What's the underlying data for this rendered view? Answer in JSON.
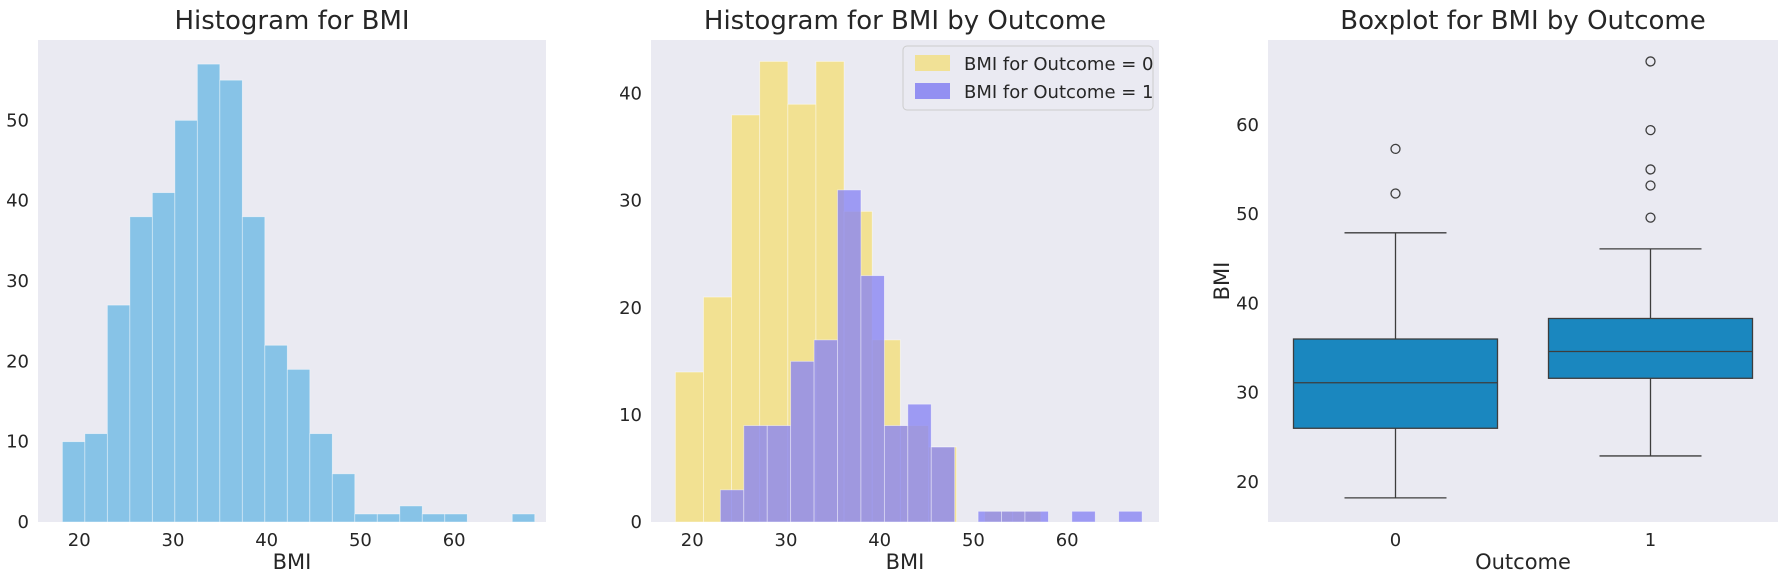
{
  "chart_data": [
    {
      "type": "bar",
      "title": "Histogram for BMI",
      "xlabel": "BMI",
      "ylabel": "",
      "xlim": [
        15.6,
        69.8
      ],
      "ylim": [
        0,
        60
      ],
      "xticks": [
        20,
        30,
        40,
        50,
        60
      ],
      "yticks": [
        0,
        10,
        20,
        30,
        40,
        50
      ],
      "grid": false,
      "color": "#87c3e7",
      "bins": [
        {
          "x0": 18.2,
          "x1": 20.6,
          "count": 10
        },
        {
          "x0": 20.6,
          "x1": 23.0,
          "count": 11
        },
        {
          "x0": 23.0,
          "x1": 25.4,
          "count": 27
        },
        {
          "x0": 25.4,
          "x1": 27.8,
          "count": 38
        },
        {
          "x0": 27.8,
          "x1": 30.2,
          "count": 41
        },
        {
          "x0": 30.2,
          "x1": 32.6,
          "count": 50
        },
        {
          "x0": 32.6,
          "x1": 35.0,
          "count": 57
        },
        {
          "x0": 35.0,
          "x1": 37.4,
          "count": 55
        },
        {
          "x0": 37.4,
          "x1": 39.8,
          "count": 38
        },
        {
          "x0": 39.8,
          "x1": 42.2,
          "count": 22
        },
        {
          "x0": 42.2,
          "x1": 44.6,
          "count": 19
        },
        {
          "x0": 44.6,
          "x1": 47.0,
          "count": 11
        },
        {
          "x0": 47.0,
          "x1": 49.4,
          "count": 6
        },
        {
          "x0": 49.4,
          "x1": 51.8,
          "count": 1
        },
        {
          "x0": 51.8,
          "x1": 54.2,
          "count": 1
        },
        {
          "x0": 54.2,
          "x1": 56.6,
          "count": 2
        },
        {
          "x0": 56.6,
          "x1": 59.0,
          "count": 1
        },
        {
          "x0": 59.0,
          "x1": 61.4,
          "count": 1
        },
        {
          "x0": 61.4,
          "x1": 63.8,
          "count": 0
        },
        {
          "x0": 63.8,
          "x1": 66.2,
          "count": 0
        },
        {
          "x0": 66.2,
          "x1": 68.6,
          "count": 1
        }
      ]
    },
    {
      "type": "bar",
      "title": "Histogram for BMI by Outcome",
      "xlabel": "BMI",
      "ylabel": "",
      "xlim": [
        15.6,
        69.8
      ],
      "ylim": [
        0,
        45
      ],
      "xticks": [
        20,
        30,
        40,
        50,
        60
      ],
      "yticks": [
        0,
        10,
        20,
        30,
        40
      ],
      "grid": false,
      "legend_position": "top-right",
      "series": [
        {
          "name": "BMI for Outcome = 0",
          "color": "#f2e08c",
          "bins": [
            {
              "x0": 18.2,
              "x1": 21.2,
              "count": 14
            },
            {
              "x0": 21.2,
              "x1": 24.2,
              "count": 21
            },
            {
              "x0": 24.2,
              "x1": 27.2,
              "count": 38
            },
            {
              "x0": 27.2,
              "x1": 30.2,
              "count": 43
            },
            {
              "x0": 30.2,
              "x1": 33.2,
              "count": 39
            },
            {
              "x0": 33.2,
              "x1": 36.2,
              "count": 43
            },
            {
              "x0": 36.2,
              "x1": 39.2,
              "count": 29
            },
            {
              "x0": 39.2,
              "x1": 42.2,
              "count": 17
            },
            {
              "x0": 42.2,
              "x1": 45.2,
              "count": 9
            },
            {
              "x0": 45.2,
              "x1": 48.2,
              "count": 7
            },
            {
              "x0": 48.2,
              "x1": 51.2,
              "count": 0
            },
            {
              "x0": 51.2,
              "x1": 54.2,
              "count": 1
            },
            {
              "x0": 54.2,
              "x1": 57.2,
              "count": 1
            }
          ]
        },
        {
          "name": "BMI for Outcome = 1",
          "color": "#8a86f2",
          "bins": [
            {
              "x0": 23.0,
              "x1": 25.5,
              "count": 3
            },
            {
              "x0": 25.5,
              "x1": 28.0,
              "count": 9
            },
            {
              "x0": 28.0,
              "x1": 30.5,
              "count": 9
            },
            {
              "x0": 30.5,
              "x1": 33.0,
              "count": 15
            },
            {
              "x0": 33.0,
              "x1": 35.5,
              "count": 17
            },
            {
              "x0": 35.5,
              "x1": 38.0,
              "count": 31
            },
            {
              "x0": 38.0,
              "x1": 40.5,
              "count": 23
            },
            {
              "x0": 40.5,
              "x1": 43.0,
              "count": 9
            },
            {
              "x0": 43.0,
              "x1": 45.5,
              "count": 11
            },
            {
              "x0": 45.5,
              "x1": 48.0,
              "count": 7
            },
            {
              "x0": 48.0,
              "x1": 50.5,
              "count": 0
            },
            {
              "x0": 50.5,
              "x1": 53.0,
              "count": 1
            },
            {
              "x0": 53.0,
              "x1": 55.5,
              "count": 1
            },
            {
              "x0": 55.5,
              "x1": 58.0,
              "count": 1
            },
            {
              "x0": 58.0,
              "x1": 60.5,
              "count": 0
            },
            {
              "x0": 60.5,
              "x1": 63.0,
              "count": 1
            },
            {
              "x0": 63.0,
              "x1": 65.5,
              "count": 0
            },
            {
              "x0": 65.5,
              "x1": 68.0,
              "count": 1
            }
          ]
        }
      ],
      "overlap_color": "#9489c2"
    },
    {
      "type": "box",
      "title": "Boxplot for BMI by Outcome",
      "xlabel": "Outcome",
      "ylabel": "BMI",
      "categories": [
        "0",
        "1"
      ],
      "ylim": [
        15.5,
        69.5
      ],
      "yticks": [
        20,
        30,
        40,
        50,
        60
      ],
      "grid": false,
      "color": "#1a87bf",
      "boxes": [
        {
          "category": "0",
          "whisker_low": 18.2,
          "q1": 26.0,
          "median": 31.1,
          "q3": 36.0,
          "whisker_high": 47.9,
          "outliers": [
            52.3,
            57.3
          ]
        },
        {
          "category": "1",
          "whisker_low": 22.9,
          "q1": 31.6,
          "median": 34.6,
          "q3": 38.3,
          "whisker_high": 46.1,
          "outliers": [
            49.6,
            53.2,
            55.0,
            59.4,
            67.1
          ]
        }
      ]
    }
  ]
}
